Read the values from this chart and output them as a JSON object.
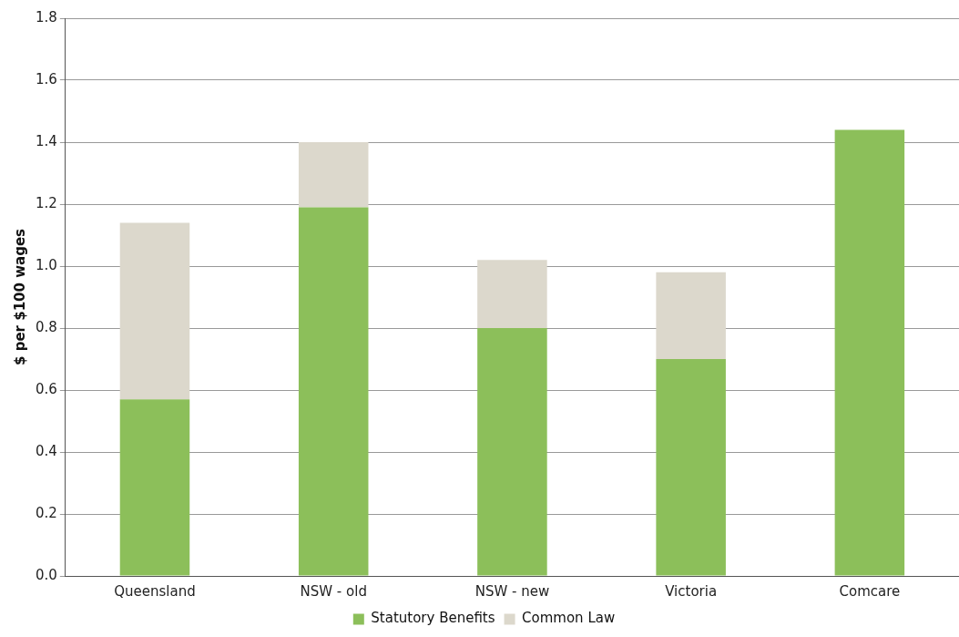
{
  "chart_data": {
    "type": "bar",
    "stacked": true,
    "ylabel": "$ per $100 wages",
    "categories": [
      "Queensland",
      "NSW - old",
      "NSW - new",
      "Victoria",
      "Comcare"
    ],
    "series": [
      {
        "name": "Statutory Benefits",
        "color": "#8cbf5a",
        "values": [
          0.57,
          1.19,
          0.8,
          0.7,
          1.44
        ]
      },
      {
        "name": "Common Law",
        "color": "#dcd8cc",
        "values": [
          0.57,
          0.21,
          0.22,
          0.28,
          0
        ]
      }
    ],
    "ylim": [
      0,
      1.8
    ],
    "yticks": [
      "0.0",
      0.2,
      0.4,
      0.6,
      0.8,
      "1.0",
      1.2,
      1.4,
      1.6,
      1.8
    ],
    "grid": "y",
    "legend": "bottom"
  }
}
